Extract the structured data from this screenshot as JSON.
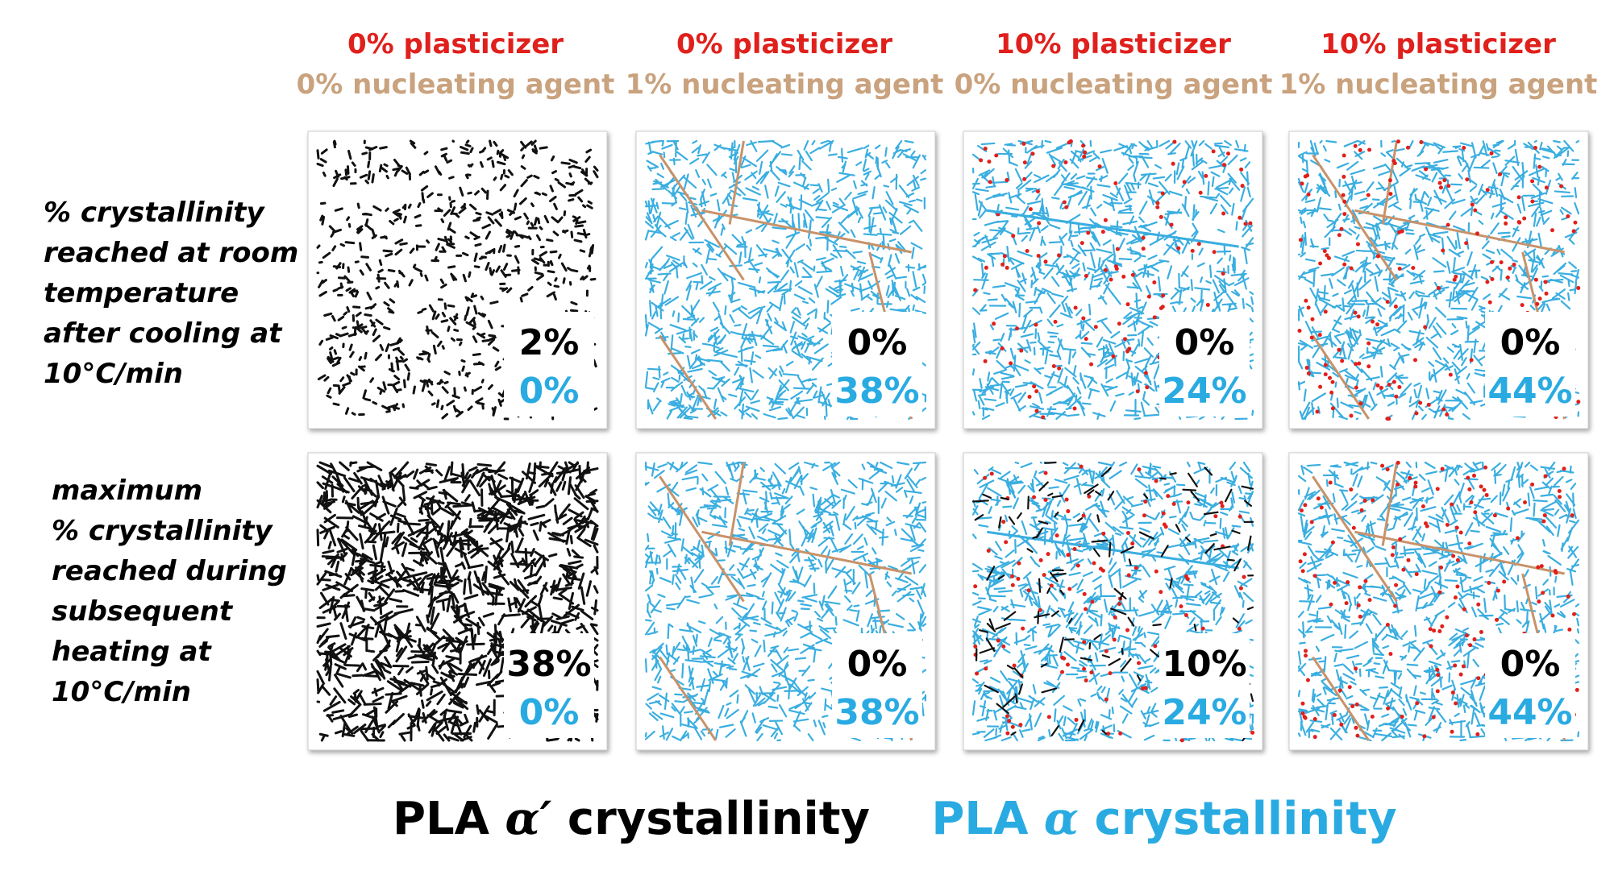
{
  "columns": [
    {
      "plasticizer": "0% plasticizer",
      "nucleating_agent": "0% nucleating agent"
    },
    {
      "plasticizer": "0% plasticizer",
      "nucleating_agent": "1% nucleating agent"
    },
    {
      "plasticizer": "10% plasticizer",
      "nucleating_agent": "0% nucleating agent"
    },
    {
      "plasticizer": "10% plasticizer",
      "nucleating_agent": "1% nucleating agent"
    }
  ],
  "rows": [
    {
      "label_lines": [
        "% crystallinity",
        "reached at room",
        "temperature",
        "after cooling at",
        "10°C/min"
      ],
      "cells": [
        {
          "alpha_prime": "2%",
          "alpha": "0%"
        },
        {
          "alpha_prime": "0%",
          "alpha": "38%"
        },
        {
          "alpha_prime": "0%",
          "alpha": "24%"
        },
        {
          "alpha_prime": "0%",
          "alpha": "44%"
        }
      ]
    },
    {
      "label_lines": [
        "maximum",
        "% crystallinity",
        "reached during",
        "subsequent",
        "heating at",
        "10°C/min"
      ],
      "cells": [
        {
          "alpha_prime": "38%",
          "alpha": "0%"
        },
        {
          "alpha_prime": "0%",
          "alpha": "38%"
        },
        {
          "alpha_prime": "10%",
          "alpha": "24%"
        },
        {
          "alpha_prime": "0%",
          "alpha": "44%"
        }
      ]
    }
  ],
  "legend": {
    "alpha_prime": {
      "prefix": "PLA",
      "symbol": "α′",
      "suffix": "crystallinity"
    },
    "alpha": {
      "prefix": "PLA",
      "symbol": "α",
      "suffix": "crystallinity"
    }
  }
}
